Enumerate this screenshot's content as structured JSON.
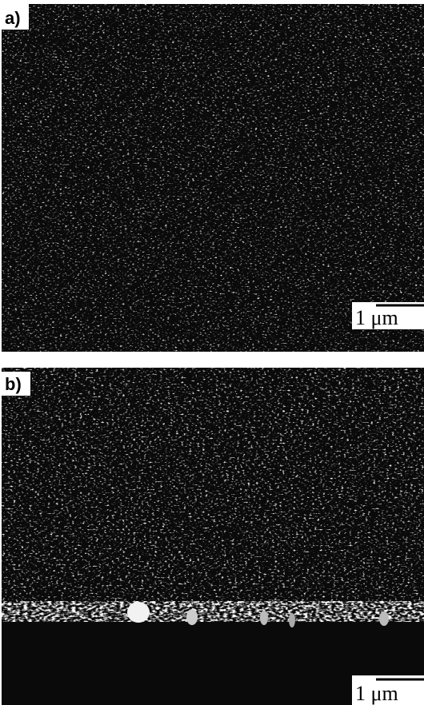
{
  "panels": [
    {
      "label": "a)",
      "scale_bar": "1 μm"
    },
    {
      "label": "b)",
      "scale_bar": "1 μm"
    }
  ]
}
